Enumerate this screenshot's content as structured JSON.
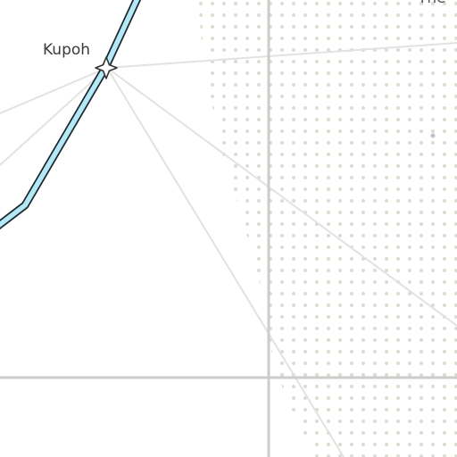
{
  "map": {
    "places": [
      {
        "name": "Kupoh",
        "marker": "star-icon"
      },
      {
        "name": "The"
      }
    ],
    "colors": {
      "background": "#ffffff",
      "dot_pattern": "#dcdcd0",
      "river_fill": "#b3e8f7",
      "river_stroke": "#1e2a30",
      "thin_road": "#e0e0e0",
      "major_road": "#cfcfcf",
      "marker_fill": "#ffffff",
      "marker_stroke": "#333333"
    }
  }
}
